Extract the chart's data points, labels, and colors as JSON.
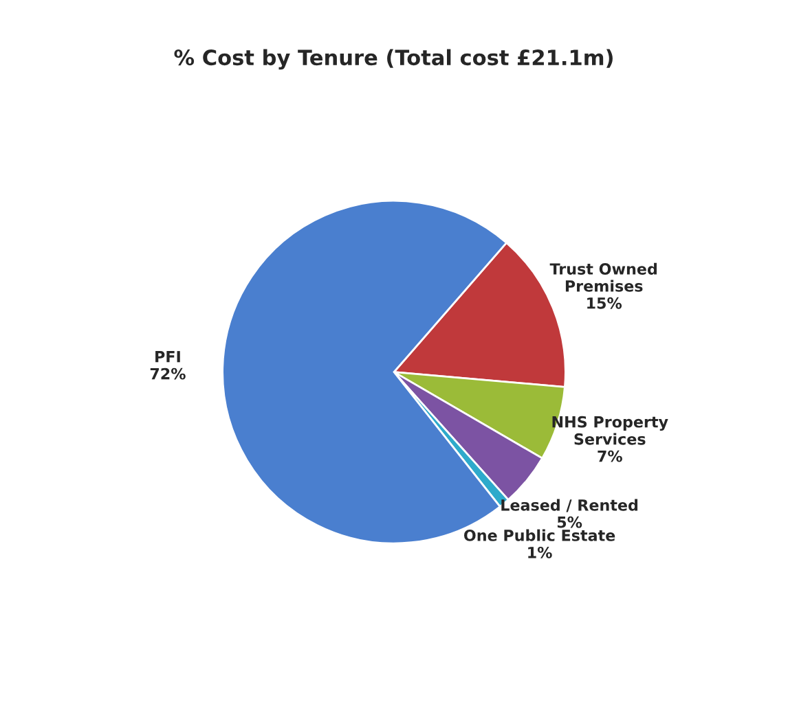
{
  "chart_data": {
    "type": "pie",
    "title": "% Cost by Tenure (Total cost £21.1m)",
    "categories": [
      "Trust Owned\nPremises",
      "NHS Property\nServices",
      "Leased / Rented",
      "One Public Estate",
      "PFI"
    ],
    "values": [
      15,
      7,
      5,
      1,
      72
    ],
    "value_labels": [
      "15%",
      "7%",
      "5%",
      "1%",
      "72%"
    ],
    "colors": [
      "#c0393b",
      "#9bbb38",
      "#7c53a3",
      "#2eaacb",
      "#4a7fcf"
    ],
    "legend": false
  }
}
